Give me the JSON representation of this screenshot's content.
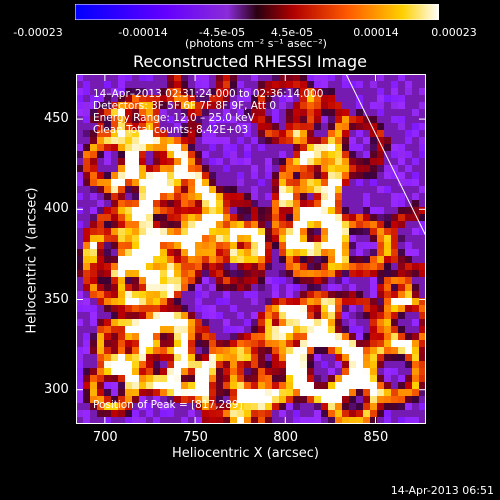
{
  "colorbar": {
    "ticks": [
      "-0.00023",
      "-0.00014",
      "-4.5e-05",
      "4.5e-05",
      "0.00014",
      "0.00023"
    ],
    "units_label": "(photons cm⁻² s⁻¹ asec⁻²)",
    "colormap": [
      "#0000ff",
      "#5a00ff",
      "#9a2bff",
      "#3a0033",
      "#c00000",
      "#ff6a00",
      "#ffd000",
      "#ffffff"
    ]
  },
  "header": {
    "title": "Reconstructed RHESSI Image"
  },
  "overlay": {
    "time": "14–Apr–2013 02:31:24.000 to 02:36:14.000",
    "detectors": "Detectors: 3F 5F 6F 7F 8F 9F, Att 0",
    "energy": "Energy Range: 12.0 – 25.0 keV",
    "clean": "Clean     Total counts: 8.42E+03",
    "peak": "Position of Peak = [817,289]"
  },
  "chart_data": {
    "type": "heatmap",
    "title": "Reconstructed RHESSI Image",
    "xlabel": "Heliocentric X (arcsec)",
    "ylabel": "Heliocentric Y (arcsec)",
    "x_ticks": [
      700,
      750,
      800,
      850
    ],
    "y_ticks": [
      300,
      350,
      400,
      450
    ],
    "xlim": [
      684,
      878
    ],
    "ylim": [
      281,
      475
    ],
    "colorbar_range": [
      -0.00023,
      0.00023
    ],
    "peak_position": [
      817,
      289
    ]
  },
  "footer": {
    "timestamp": "14-Apr-2013 06:51"
  }
}
